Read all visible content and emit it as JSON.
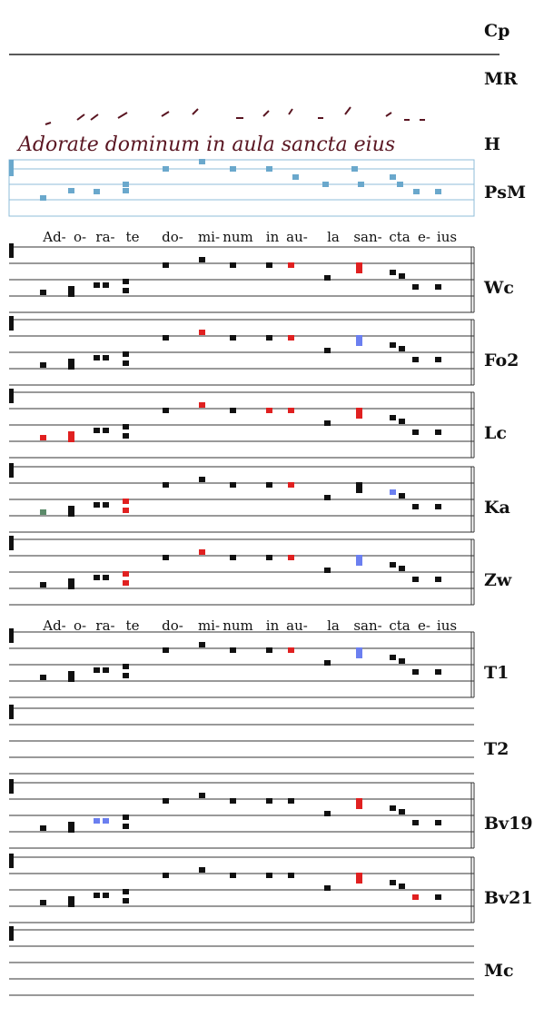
{
  "rows": [
    {
      "label": "Cp"
    },
    {
      "label": "MR"
    },
    {
      "label": "H"
    },
    {
      "label": "PsM"
    },
    {
      "label": "Wc"
    },
    {
      "label": "Fo2"
    },
    {
      "label": "Lc"
    },
    {
      "label": "Ka"
    },
    {
      "label": "Zw"
    },
    {
      "label": "T1"
    },
    {
      "label": "T2"
    },
    {
      "label": "Bv19"
    },
    {
      "label": "Bv21"
    },
    {
      "label": "Mc"
    }
  ],
  "manuscript_text": "Adorate dominum in aula sancta eius",
  "lyrics": [
    "Ad-",
    "o-",
    "ra-",
    "te",
    "do-",
    "mi-",
    "num",
    "in",
    "au-",
    "la",
    "san-",
    "cta",
    "e-",
    "ius"
  ]
}
